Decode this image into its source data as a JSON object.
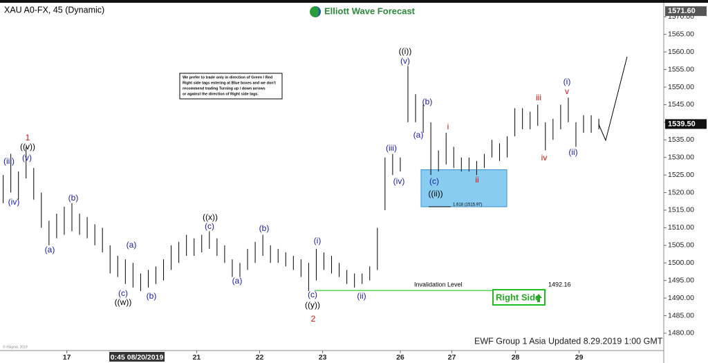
{
  "chart_data": {
    "type": "range_bar",
    "title": "XAU A0-FX, 45 (Dynamic)",
    "brand": "Elliott Wave Forecast",
    "footer": "EWF Group 1 Asia Updated 8.29.2019 1:00 GMT",
    "copyright": "© eSignal, 2019",
    "color": "#000000",
    "x": [
      0,
      0.12,
      0.24,
      0.36,
      0.48,
      0.6,
      0.72,
      0.84,
      0.96,
      1.08,
      1.2,
      1.32,
      1.44,
      1.56,
      1.68,
      1.8,
      1.92,
      2.04,
      2.16,
      2.28,
      2.4,
      2.52,
      2.64,
      2.76,
      2.88,
      3.0,
      3.12,
      3.24,
      3.36,
      3.48,
      3.6,
      3.72,
      3.84,
      3.96,
      4.08,
      4.2,
      4.32,
      4.44,
      4.56,
      4.68,
      4.8,
      4.92,
      5.04,
      5.16,
      5.28,
      5.4,
      5.52,
      5.64,
      5.76,
      5.88,
      6.0,
      6.12,
      6.24,
      6.36,
      6.48,
      6.6,
      6.72,
      6.84,
      6.96,
      7.08,
      7.2,
      7.32,
      7.44,
      7.56,
      7.68,
      7.8,
      7.92,
      8.04,
      8.16,
      8.28,
      8.4,
      8.52,
      8.64,
      8.76,
      8.88,
      9.0,
      9.12,
      9.24,
      9.36
    ],
    "high": [
      1525,
      1531,
      1526,
      1533,
      1527,
      1520,
      1512,
      1514,
      1516,
      1517,
      1514,
      1513,
      1511,
      1510,
      1505,
      1502,
      1501,
      1500,
      1497,
      1498,
      1499,
      1501,
      1505,
      1506,
      1508,
      1507,
      1508,
      1509,
      1507,
      1505,
      1501,
      1500,
      1504,
      1506,
      1508,
      1505,
      1504,
      1503,
      1502,
      1501,
      1500,
      1504,
      1503,
      1502,
      1500,
      1498,
      1497,
      1497,
      1499,
      1510,
      1530,
      1531,
      1530,
      1556,
      1548,
      1545,
      1540,
      1532,
      1537,
      1533,
      1530,
      1530,
      1529,
      1531,
      1535,
      1534,
      1536,
      1544,
      1544,
      1543,
      1545,
      1540,
      1541,
      1545,
      1547,
      1540,
      1542,
      1542,
      1541
    ],
    "low": [
      1517,
      1520,
      1518,
      1524,
      1518,
      1510,
      1505,
      1507,
      1508,
      1509,
      1508,
      1507,
      1505,
      1503,
      1497,
      1496,
      1494,
      1493,
      1492,
      1493,
      1494,
      1495,
      1498,
      1500,
      1502,
      1502,
      1503,
      1504,
      1502,
      1500,
      1496,
      1496,
      1498,
      1500,
      1502,
      1500,
      1500,
      1499,
      1498,
      1496,
      1492,
      1495,
      1498,
      1497,
      1496,
      1494,
      1493,
      1494,
      1495,
      1498,
      1515,
      1525,
      1526,
      1540,
      1540,
      1537,
      1525,
      1526,
      1528,
      1527,
      1526,
      1526,
      1525,
      1527,
      1530,
      1529,
      1530,
      1536,
      1538,
      1538,
      1539,
      1532,
      1535,
      1538,
      1540,
      1533,
      1537,
      1537,
      1538
    ],
    "xlim": [
      -0.05,
      10.38
    ],
    "xticks": [
      {
        "value": 1,
        "label": "17"
      },
      {
        "value": 3.04,
        "label": "21"
      },
      {
        "value": 4.03,
        "label": "22"
      },
      {
        "value": 5.02,
        "label": "23"
      },
      {
        "value": 6.24,
        "label": "26"
      },
      {
        "value": 7.05,
        "label": "27"
      },
      {
        "value": 8.05,
        "label": "28"
      },
      {
        "value": 9.05,
        "label": "29"
      }
    ],
    "cursor_label": {
      "value": 2.08,
      "label": "0:45 08/20/2019"
    },
    "ylim": [
      1473.5,
      1573.2
    ],
    "yticks": [
      {
        "value": 1480,
        "label": "1480.00"
      },
      {
        "value": 1485,
        "label": "1485.00"
      },
      {
        "value": 1490,
        "label": "1490.00"
      },
      {
        "value": 1495,
        "label": "1495.00"
      },
      {
        "value": 1500,
        "label": "1500.00"
      },
      {
        "value": 1505,
        "label": "1505.00"
      },
      {
        "value": 1510,
        "label": "1510.00"
      },
      {
        "value": 1515,
        "label": "1515.00"
      },
      {
        "value": 1520,
        "label": "1520.00"
      },
      {
        "value": 1525,
        "label": "1525.00"
      },
      {
        "value": 1530,
        "label": "1530.00"
      },
      {
        "value": 1535,
        "label": "1535.00"
      },
      {
        "value": 1540,
        "label": "1540.00"
      },
      {
        "value": 1545,
        "label": "1545.00"
      },
      {
        "value": 1550,
        "label": "1550.00"
      },
      {
        "value": 1555,
        "label": "1555.00"
      },
      {
        "value": 1560,
        "label": "1560.00"
      },
      {
        "value": 1565,
        "label": "1565.00"
      },
      {
        "value": 1570,
        "label": "1570.00"
      }
    ],
    "last_price": {
      "value": 1539.5,
      "label": "1539.50"
    },
    "top_price": {
      "value": 1571.6,
      "label": "1571.60"
    },
    "invalidation": {
      "text": "Invalidation Level",
      "value": 1492.16,
      "color": "#33cc33"
    },
    "right_side": "Right Side",
    "blue_box": {
      "top": 1526.5,
      "bottom": 1515.97,
      "label": "1.618 (1515.97)",
      "color": "#7cc6f0"
    },
    "note": [
      "We prefer to trade only in direction of Green / Red",
      "Right side tags entering at Blue boxes and we don't",
      "recommend trading Turning up / down arrows",
      "or against the direction of Right side tags."
    ],
    "wave_labels": [
      {
        "text": "1",
        "color": "#cc1111"
      },
      {
        "text": "((v))",
        "color": "#000000"
      },
      {
        "text": "(iii)",
        "color": "#1a1aa6"
      },
      {
        "text": "(v)",
        "color": "#1a1aa6"
      },
      {
        "text": "(iv)",
        "color": "#1a1aa6"
      },
      {
        "text": "(a)",
        "color": "#1a1aa6"
      },
      {
        "text": "(b)",
        "color": "#1a1aa6"
      },
      {
        "text": "(a)",
        "color": "#1a1aa6"
      },
      {
        "text": "(c)",
        "color": "#1a1aa6"
      },
      {
        "text": "((w))",
        "color": "#000000"
      },
      {
        "text": "(b)",
        "color": "#1a1aa6"
      },
      {
        "text": "((x))",
        "color": "#000000"
      },
      {
        "text": "(c)",
        "color": "#1a1aa6"
      },
      {
        "text": "(a)",
        "color": "#1a1aa6"
      },
      {
        "text": "(b)",
        "color": "#1a1aa6"
      },
      {
        "text": "(i)",
        "color": "#1a1aa6"
      },
      {
        "text": "(c)",
        "color": "#1a1aa6"
      },
      {
        "text": "((y))",
        "color": "#000000"
      },
      {
        "text": "2",
        "color": "#cc1111"
      },
      {
        "text": "(ii)",
        "color": "#1a1aa6"
      },
      {
        "text": "(iii)",
        "color": "#1a1aa6"
      },
      {
        "text": "(iv)",
        "color": "#1a1aa6"
      },
      {
        "text": "((i))",
        "color": "#000000"
      },
      {
        "text": "(v)",
        "color": "#1a1aa6"
      },
      {
        "text": "(b)",
        "color": "#1a1aa6"
      },
      {
        "text": "(a)",
        "color": "#1a1aa6"
      },
      {
        "text": "(c)",
        "color": "#1a1aa6"
      },
      {
        "text": "((ii))",
        "color": "#000000"
      },
      {
        "text": "i",
        "color": "#cc1111"
      },
      {
        "text": "ii",
        "color": "#cc1111"
      },
      {
        "text": "iii",
        "color": "#cc1111"
      },
      {
        "text": "iv",
        "color": "#cc1111"
      },
      {
        "text": "v",
        "color": "#cc1111"
      },
      {
        "text": "(i)",
        "color": "#1a1aa6"
      },
      {
        "text": "(ii)",
        "color": "#1a1aa6"
      }
    ]
  }
}
